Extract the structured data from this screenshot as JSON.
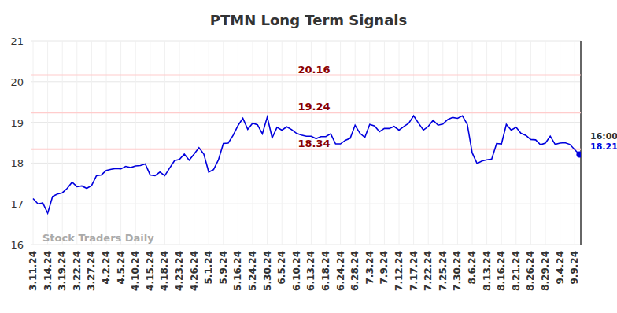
{
  "chart_data": {
    "type": "line",
    "title": "PTMN Long Term Signals",
    "categories": [
      "3.11.24",
      null,
      null,
      "3.14.24",
      null,
      null,
      "3.19.24",
      null,
      null,
      "3.22.24",
      null,
      null,
      "3.27.24",
      null,
      null,
      "4.2.24",
      null,
      null,
      "4.5.24",
      null,
      null,
      "4.10.24",
      null,
      null,
      "4.15.24",
      null,
      null,
      "4.18.24",
      null,
      null,
      "4.23.24",
      null,
      null,
      "4.26.24",
      null,
      null,
      "5.1.24",
      null,
      null,
      "5.9.24",
      null,
      null,
      "5.16.24",
      null,
      null,
      "5.24.24",
      null,
      null,
      "5.30.24",
      null,
      null,
      "6.5.24",
      null,
      null,
      "6.10.24",
      null,
      null,
      "6.13.24",
      null,
      null,
      "6.18.24",
      null,
      null,
      "6.24.24",
      null,
      null,
      "6.28.24",
      null,
      null,
      "7.3.24",
      null,
      null,
      "7.9.24",
      null,
      null,
      "7.12.24",
      null,
      null,
      "7.17.24",
      null,
      null,
      "7.22.24",
      null,
      null,
      "7.25.24",
      null,
      null,
      "7.30.24",
      null,
      null,
      "8.6.24",
      null,
      null,
      "8.13.24",
      null,
      null,
      "8.16.24",
      null,
      null,
      "8.21.24",
      null,
      null,
      "8.26.24",
      null,
      null,
      "8.29.24",
      null,
      null,
      "9.4.24",
      null,
      null,
      "9.9.24",
      null
    ],
    "series": [
      {
        "color": "#0000dd",
        "values": [
          17.13,
          17.0,
          17.02,
          16.77,
          17.18,
          17.24,
          17.27,
          17.38,
          17.53,
          17.42,
          17.44,
          17.38,
          17.45,
          17.69,
          17.71,
          17.82,
          17.85,
          17.87,
          17.86,
          17.92,
          17.89,
          17.93,
          17.94,
          17.98,
          17.71,
          17.69,
          17.78,
          17.69,
          17.88,
          18.06,
          18.09,
          18.22,
          18.07,
          18.22,
          18.38,
          18.22,
          17.78,
          17.84,
          18.08,
          18.48,
          18.49,
          18.68,
          18.92,
          19.1,
          18.83,
          18.98,
          18.94,
          18.72,
          19.13,
          18.62,
          18.88,
          18.81,
          18.89,
          18.82,
          18.73,
          18.69,
          18.66,
          18.66,
          18.6,
          18.65,
          18.65,
          18.72,
          18.47,
          18.47,
          18.56,
          18.61,
          18.93,
          18.73,
          18.63,
          18.95,
          18.91,
          18.77,
          18.85,
          18.85,
          18.9,
          18.81,
          18.9,
          18.98,
          19.16,
          18.98,
          18.81,
          18.9,
          19.05,
          18.93,
          18.96,
          19.07,
          19.12,
          19.1,
          19.16,
          18.95,
          18.25,
          17.99,
          18.05,
          18.08,
          18.1,
          18.48,
          18.47,
          18.95,
          18.81,
          18.88,
          18.73,
          18.68,
          18.58,
          18.57,
          18.45,
          18.49,
          18.66,
          18.46,
          18.49,
          18.5,
          18.46,
          18.33,
          18.21
        ]
      }
    ],
    "reference_lines": [
      20.16,
      19.24,
      18.34
    ],
    "ylim": [
      16,
      21
    ],
    "yticks": [
      16,
      17,
      18,
      19,
      20,
      21
    ],
    "grid": true,
    "watermark": "Stock Traders Daily",
    "last_time": "16:00"
  }
}
